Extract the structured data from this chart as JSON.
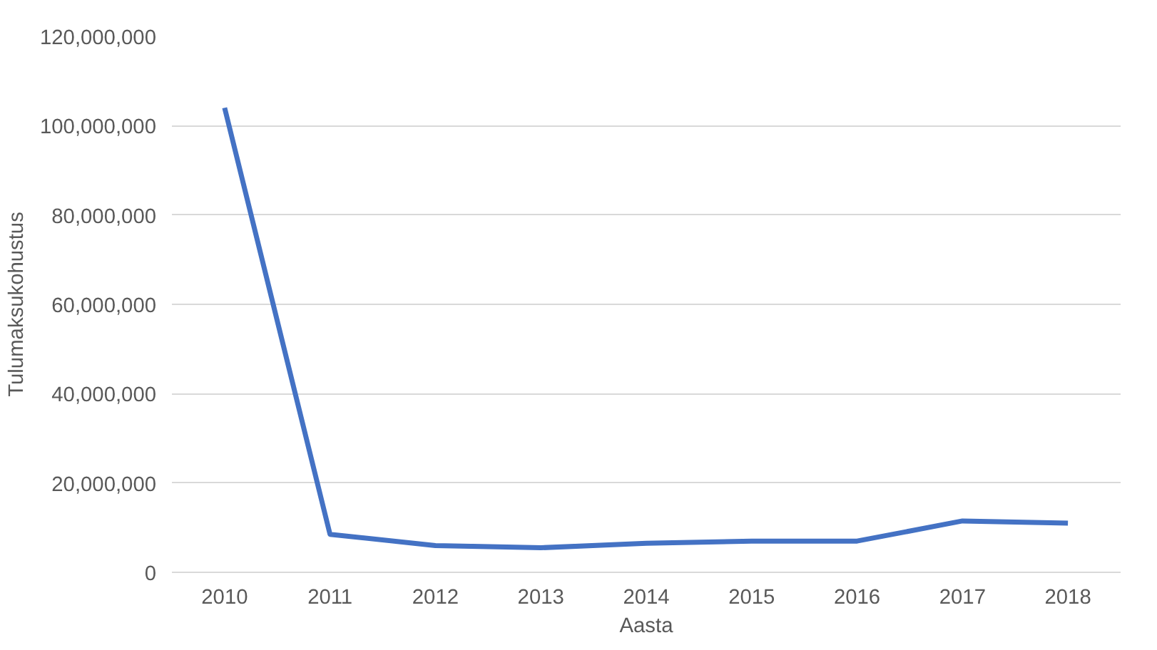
{
  "chart_data": {
    "type": "line",
    "xlabel": "Aasta",
    "ylabel": "Tulumaksukohustus",
    "categories": [
      "2010",
      "2011",
      "2012",
      "2013",
      "2014",
      "2015",
      "2016",
      "2017",
      "2018"
    ],
    "series": [
      {
        "color": "#4472c4",
        "values": [
          104000000,
          8500000,
          6000000,
          5500000,
          6500000,
          7000000,
          7000000,
          11500000,
          11000000
        ]
      }
    ],
    "ylim": [
      0,
      120000000
    ],
    "yticks": [
      {
        "value": 0,
        "label": "0"
      },
      {
        "value": 20000000,
        "label": "20,000,000"
      },
      {
        "value": 40000000,
        "label": "40,000,000"
      },
      {
        "value": 60000000,
        "label": "60,000,000"
      },
      {
        "value": 80000000,
        "label": "80,000,000"
      },
      {
        "value": 100000000,
        "label": "100,000,000"
      },
      {
        "value": 120000000,
        "label": "120,000,000"
      }
    ],
    "grid": "y",
    "line_style": "solid"
  }
}
